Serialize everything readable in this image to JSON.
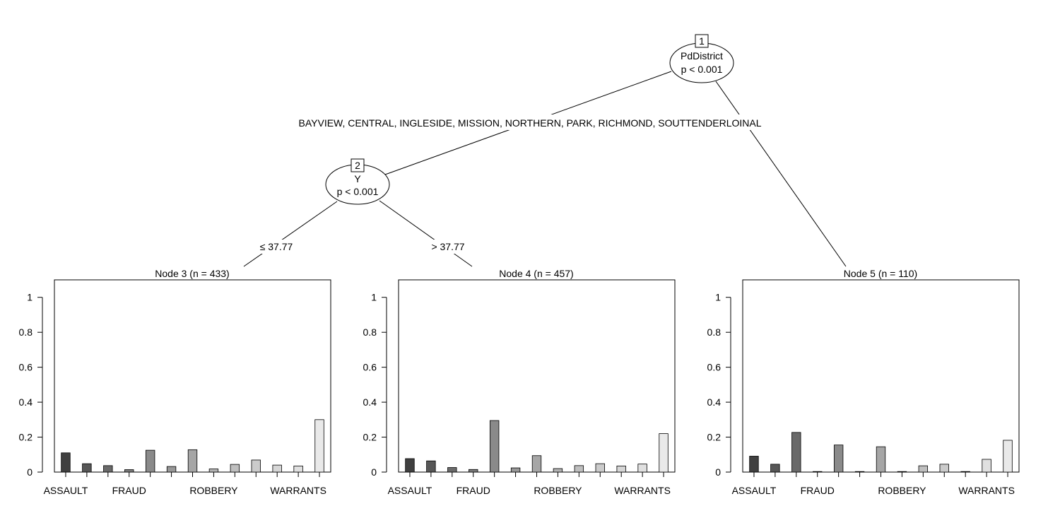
{
  "tree": {
    "root": {
      "id": "1",
      "variable": "PdDistrict",
      "pvalue": "p < 0.001"
    },
    "root_left_edge_label": "BAYVIEW, CENTRAL, INGLESIDE, MISSION, NORTHERN, PARK, RICHMOND, SOUTTENDERLOINAL",
    "inner": {
      "id": "2",
      "variable": "Y",
      "pvalue": "p < 0.001"
    },
    "inner_left_edge_label": "≤ 37.77",
    "inner_right_edge_label": "> 37.77"
  },
  "chart_data": [
    {
      "type": "bar",
      "title": "Node 3 (n = 433)",
      "ylim": [
        0,
        1.1
      ],
      "yticks": [
        "0",
        "0.2",
        "0.4",
        "0.6",
        "0.8",
        "1"
      ],
      "x_tick_labels": [
        "ASSAULT",
        "FRAUD",
        "ROBBERY",
        "WARRANTS"
      ],
      "values": [
        0.11,
        0.048,
        0.037,
        0.014,
        0.125,
        0.032,
        0.128,
        0.018,
        0.044,
        0.069,
        0.04,
        0.035,
        0.3
      ]
    },
    {
      "type": "bar",
      "title": "Node 4 (n = 457)",
      "ylim": [
        0,
        1.1
      ],
      "yticks": [
        "0",
        "0.2",
        "0.4",
        "0.6",
        "0.8",
        "1"
      ],
      "x_tick_labels": [
        "ASSAULT",
        "FRAUD",
        "ROBBERY",
        "WARRANTS"
      ],
      "values": [
        0.077,
        0.064,
        0.026,
        0.015,
        0.295,
        0.024,
        0.094,
        0.02,
        0.037,
        0.048,
        0.035,
        0.046,
        0.22
      ]
    },
    {
      "type": "bar",
      "title": "Node 5 (n = 110)",
      "ylim": [
        0,
        1.1
      ],
      "yticks": [
        "0",
        "0.2",
        "0.4",
        "0.6",
        "0.8",
        "1"
      ],
      "x_tick_labels": [
        "ASSAULT",
        "FRAUD",
        "ROBBERY",
        "WARRANTS"
      ],
      "values": [
        0.091,
        0.045,
        0.227,
        0,
        0.155,
        0,
        0.145,
        0,
        0.036,
        0.045,
        0,
        0.073,
        0.182
      ]
    }
  ],
  "bar_colors": [
    "#404040",
    "#575757",
    "#6a6a6a",
    "#7b7b7b",
    "#8a8a8a",
    "#989898",
    "#a6a6a6",
    "#b3b3b3",
    "#bfbfbf",
    "#cbcbcb",
    "#d6d6d6",
    "#e0e0e0",
    "#e9e9e9"
  ]
}
